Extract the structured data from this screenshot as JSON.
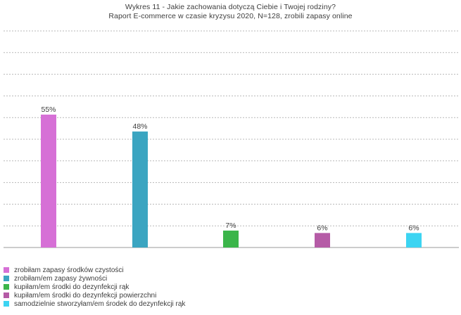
{
  "chart_data": {
    "type": "bar",
    "title": "Wykres 11 - Jakie zachowania dotyczą Ciebie i Twojej rodziny?",
    "subtitle": "Raport E-commerce w czasie kryzysu 2020, N=128, zrobili zapasy online",
    "xlabel": "",
    "ylabel": "",
    "ylim": [
      0,
      100
    ],
    "grid": true,
    "legend_position": "bottom-left",
    "categories": [
      "zrobiłam zapasy środków czystości",
      "zrobiłam/em zapasy żywności",
      "kupiłam/em środki do dezynfekcji rąk",
      "kupiłam/em środki do dezynfekcji powierzchni",
      "samodzielnie stworzyłam/em środek do dezynfekcji rąk"
    ],
    "values": [
      55,
      48,
      7,
      6,
      6
    ],
    "value_labels": [
      "55%",
      "48%",
      "7%",
      "6%",
      "6%"
    ],
    "colors": [
      "#d670d6",
      "#3ba5c1",
      "#3bb54a",
      "#b55ba6",
      "#3cd4f2"
    ]
  }
}
